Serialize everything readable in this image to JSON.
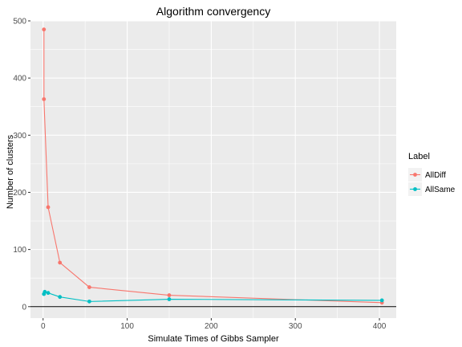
{
  "chart_data": {
    "type": "line",
    "title": "Algorithm convergency",
    "xlabel": "Simulate Times of Gibbs Sampler",
    "ylabel": "Number of clusters",
    "xlim": [
      -15,
      420
    ],
    "ylim": [
      -20,
      500
    ],
    "xticks": [
      0,
      100,
      200,
      300,
      400
    ],
    "yticks": [
      0,
      100,
      200,
      300,
      400,
      500
    ],
    "grid": true,
    "hline_y": 0,
    "legend": {
      "title": "Label",
      "placement": "right"
    },
    "series": [
      {
        "name": "AllDiff",
        "color": "#F8766D",
        "points": [
          [
            1,
            485
          ],
          [
            1,
            363
          ],
          [
            6,
            174
          ],
          [
            20,
            77
          ],
          [
            55,
            34
          ],
          [
            150,
            20
          ],
          [
            403,
            7
          ]
        ]
      },
      {
        "name": "AllSame",
        "color": "#00BFC4",
        "points": [
          [
            1,
            22
          ],
          [
            2,
            26
          ],
          [
            6,
            24
          ],
          [
            20,
            17
          ],
          [
            55,
            9
          ],
          [
            150,
            13
          ],
          [
            403,
            11
          ]
        ]
      }
    ]
  }
}
